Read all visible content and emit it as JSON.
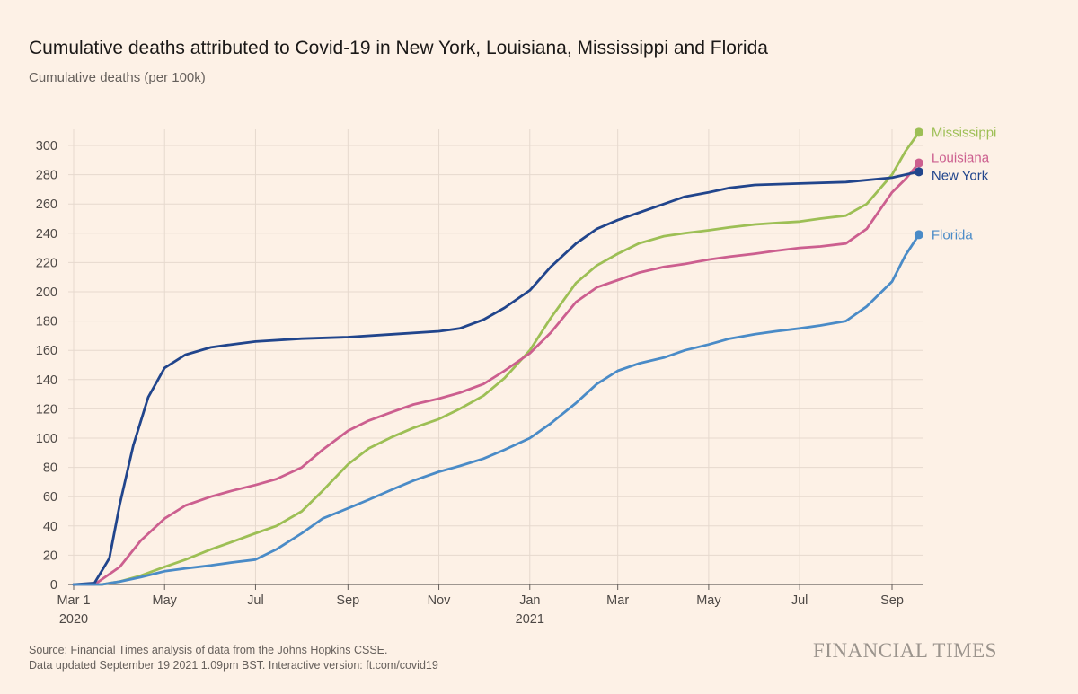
{
  "header": {
    "title": "Cumulative deaths attributed to Covid-19 in New York, Louisiana, Mississippi and Florida",
    "subtitle": "Cumulative deaths (per 100k)"
  },
  "footer": {
    "source": "Source: Financial Times analysis of data from the Johns Hopkins CSSE.",
    "updated": "Data updated September 19 2021 1.09pm BST. Interactive version: ft.com/covid19",
    "brand": "FINANCIAL TIMES"
  },
  "chart_data": {
    "type": "line",
    "title": "Cumulative deaths attributed to Covid-19 in New York, Louisiana, Mississippi and Florida",
    "ylabel": "Cumulative deaths (per 100k)",
    "ylim": [
      0,
      300
    ],
    "yticks": [
      0,
      20,
      40,
      60,
      80,
      100,
      120,
      140,
      160,
      180,
      200,
      220,
      240,
      260,
      280,
      300
    ],
    "xlim": [
      "2020-03-01",
      "2021-09-19"
    ],
    "xticks": [
      {
        "date": "2020-03-01",
        "label": "Mar 1",
        "sublabel": "2020"
      },
      {
        "date": "2020-05-01",
        "label": "May",
        "sublabel": ""
      },
      {
        "date": "2020-07-01",
        "label": "Jul",
        "sublabel": ""
      },
      {
        "date": "2020-09-01",
        "label": "Sep",
        "sublabel": ""
      },
      {
        "date": "2020-11-01",
        "label": "Nov",
        "sublabel": ""
      },
      {
        "date": "2021-01-01",
        "label": "Jan",
        "sublabel": "2021"
      },
      {
        "date": "2021-03-01",
        "label": "Mar",
        "sublabel": ""
      },
      {
        "date": "2021-05-01",
        "label": "May",
        "sublabel": ""
      },
      {
        "date": "2021-07-01",
        "label": "Jul",
        "sublabel": ""
      },
      {
        "date": "2021-09-01",
        "label": "Sep",
        "sublabel": ""
      }
    ],
    "grid": true,
    "legend": "end-of-line labels",
    "series": [
      {
        "name": "Mississippi",
        "color": "#9dbf55",
        "x": [
          "2020-03-01",
          "2020-03-20",
          "2020-04-01",
          "2020-04-15",
          "2020-05-01",
          "2020-05-15",
          "2020-06-01",
          "2020-06-15",
          "2020-07-01",
          "2020-07-15",
          "2020-08-01",
          "2020-08-15",
          "2020-09-01",
          "2020-09-15",
          "2020-10-01",
          "2020-10-15",
          "2020-11-01",
          "2020-11-15",
          "2020-12-01",
          "2020-12-15",
          "2021-01-01",
          "2021-01-15",
          "2021-02-01",
          "2021-02-15",
          "2021-03-01",
          "2021-03-15",
          "2021-04-01",
          "2021-04-15",
          "2021-05-01",
          "2021-05-15",
          "2021-06-01",
          "2021-06-15",
          "2021-07-01",
          "2021-07-15",
          "2021-08-01",
          "2021-08-15",
          "2021-09-01",
          "2021-09-10",
          "2021-09-19"
        ],
        "values": [
          0,
          0,
          2,
          6,
          12,
          17,
          24,
          29,
          35,
          40,
          50,
          64,
          82,
          93,
          101,
          107,
          113,
          120,
          129,
          141,
          160,
          182,
          206,
          218,
          226,
          233,
          238,
          240,
          242,
          244,
          246,
          247,
          248,
          250,
          252,
          260,
          280,
          296,
          309
        ]
      },
      {
        "name": "Louisiana",
        "color": "#cc5f8f",
        "x": [
          "2020-03-01",
          "2020-03-15",
          "2020-04-01",
          "2020-04-15",
          "2020-05-01",
          "2020-05-15",
          "2020-06-01",
          "2020-06-15",
          "2020-07-01",
          "2020-07-15",
          "2020-08-01",
          "2020-08-15",
          "2020-09-01",
          "2020-09-15",
          "2020-10-01",
          "2020-10-15",
          "2020-11-01",
          "2020-11-15",
          "2020-12-01",
          "2020-12-15",
          "2021-01-01",
          "2021-01-15",
          "2021-02-01",
          "2021-02-15",
          "2021-03-01",
          "2021-03-15",
          "2021-04-01",
          "2021-04-15",
          "2021-05-01",
          "2021-05-15",
          "2021-06-01",
          "2021-06-15",
          "2021-07-01",
          "2021-07-15",
          "2021-08-01",
          "2021-08-15",
          "2021-09-01",
          "2021-09-10",
          "2021-09-19"
        ],
        "values": [
          0,
          0,
          12,
          30,
          45,
          54,
          60,
          64,
          68,
          72,
          80,
          92,
          105,
          112,
          118,
          123,
          127,
          131,
          137,
          146,
          158,
          172,
          193,
          203,
          208,
          213,
          217,
          219,
          222,
          224,
          226,
          228,
          230,
          231,
          233,
          243,
          268,
          277,
          288
        ]
      },
      {
        "name": "New York",
        "color": "#21458c",
        "x": [
          "2020-03-01",
          "2020-03-15",
          "2020-03-25",
          "2020-04-01",
          "2020-04-10",
          "2020-04-20",
          "2020-05-01",
          "2020-05-15",
          "2020-06-01",
          "2020-06-15",
          "2020-07-01",
          "2020-08-01",
          "2020-09-01",
          "2020-10-01",
          "2020-11-01",
          "2020-11-15",
          "2020-12-01",
          "2020-12-15",
          "2021-01-01",
          "2021-01-15",
          "2021-02-01",
          "2021-02-15",
          "2021-03-01",
          "2021-03-15",
          "2021-04-01",
          "2021-04-15",
          "2021-05-01",
          "2021-05-15",
          "2021-06-01",
          "2021-07-01",
          "2021-08-01",
          "2021-09-01",
          "2021-09-19"
        ],
        "values": [
          0,
          1,
          18,
          55,
          95,
          128,
          148,
          157,
          162,
          164,
          166,
          168,
          169,
          171,
          173,
          175,
          181,
          189,
          201,
          217,
          233,
          243,
          249,
          254,
          260,
          265,
          268,
          271,
          273,
          274,
          275,
          278,
          282
        ]
      },
      {
        "name": "Florida",
        "color": "#4a8bc7",
        "x": [
          "2020-03-01",
          "2020-03-20",
          "2020-04-01",
          "2020-04-15",
          "2020-05-01",
          "2020-05-15",
          "2020-06-01",
          "2020-06-15",
          "2020-07-01",
          "2020-07-15",
          "2020-08-01",
          "2020-08-15",
          "2020-09-01",
          "2020-09-15",
          "2020-10-01",
          "2020-10-15",
          "2020-11-01",
          "2020-11-15",
          "2020-12-01",
          "2020-12-15",
          "2021-01-01",
          "2021-01-15",
          "2021-02-01",
          "2021-02-15",
          "2021-03-01",
          "2021-03-15",
          "2021-04-01",
          "2021-04-15",
          "2021-05-01",
          "2021-05-15",
          "2021-06-01",
          "2021-06-15",
          "2021-07-01",
          "2021-07-15",
          "2021-08-01",
          "2021-08-15",
          "2021-09-01",
          "2021-09-10",
          "2021-09-19"
        ],
        "values": [
          0,
          0,
          2,
          5,
          9,
          11,
          13,
          15,
          17,
          24,
          35,
          45,
          52,
          58,
          65,
          71,
          77,
          81,
          86,
          92,
          100,
          110,
          124,
          137,
          146,
          151,
          155,
          160,
          164,
          168,
          171,
          173,
          175,
          177,
          180,
          190,
          207,
          225,
          239
        ]
      }
    ]
  }
}
